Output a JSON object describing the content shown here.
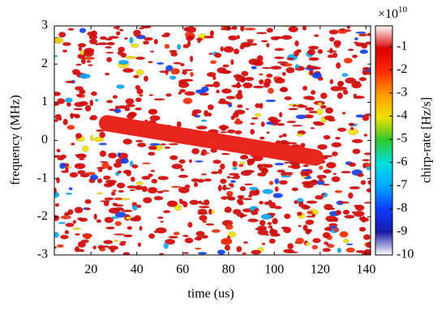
{
  "chart_data": {
    "type": "heatmap",
    "xlabel": "time (us)",
    "ylabel": "frequency (MHz)",
    "xlim": [
      4,
      142
    ],
    "xticks": [
      20,
      40,
      60,
      80,
      100,
      120,
      140
    ],
    "ylim": [
      -3,
      3
    ],
    "yticks": [
      -3,
      -2,
      -1,
      0,
      1,
      2,
      3
    ],
    "series": [
      {
        "color": "#e8261c",
        "x": [
          27,
          118
        ],
        "values": [
          0.45,
          -0.45
        ]
      }
    ],
    "colorbar": {
      "label": "chirp-rate [Hz/s]",
      "multiplier": "×10",
      "exponent": "10",
      "clim": [
        -10,
        -0.1
      ],
      "ticks": [
        -10,
        -9,
        -8,
        -7,
        -6,
        -5,
        -4,
        -3,
        -2,
        -1
      ],
      "colormap": [
        "#ffffff",
        "#1a1aa8",
        "#0b3cff",
        "#00a8ff",
        "#00e0e0",
        "#2ec82e",
        "#f0e000",
        "#ff9a00",
        "#ff2a00",
        "#d80000",
        "#ffffff"
      ]
    }
  }
}
